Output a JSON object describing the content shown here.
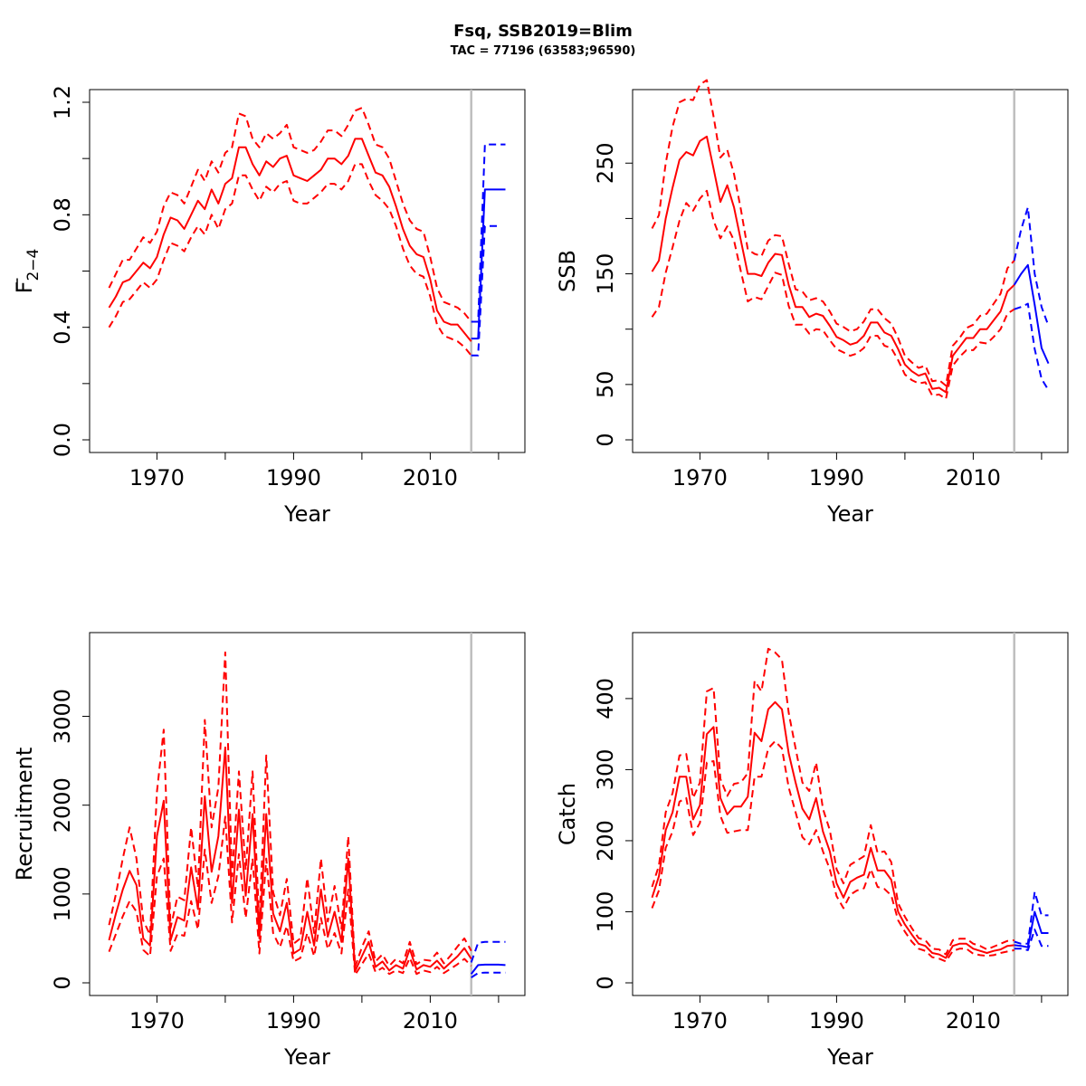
{
  "figure": {
    "title": "Fsq, SSB2019=Blim",
    "subtitle": "TAC = 77196 (63583;96590)"
  },
  "colors": {
    "historic": "#ff0000",
    "forecast": "#0000ff",
    "divider": "#bebebe"
  },
  "chart_data": [
    {
      "type": "line",
      "panel": "top-left",
      "xlabel": "Year",
      "ylabel_base": "F",
      "ylabel_sub": "2−4",
      "xlim": [
        1962,
        2022
      ],
      "ylim": [
        0,
        1.2
      ],
      "xticks": [
        1970,
        1980,
        1990,
        2000,
        2010,
        2020
      ],
      "xtick_labels": [
        "1970",
        "",
        "1990",
        "",
        "2010",
        ""
      ],
      "yticks": [
        0,
        0.2,
        0.4,
        0.6,
        0.8,
        1.0,
        1.2
      ],
      "ytick_labels": [
        "0.0",
        "",
        "0.4",
        "",
        "0.8",
        "",
        "1.2"
      ],
      "divider_year": 2016,
      "historic": {
        "x": [
          1963,
          1964,
          1965,
          1966,
          1967,
          1968,
          1969,
          1970,
          1971,
          1972,
          1973,
          1974,
          1975,
          1976,
          1977,
          1978,
          1979,
          1980,
          1981,
          1982,
          1983,
          1984,
          1985,
          1986,
          1987,
          1988,
          1989,
          1990,
          1991,
          1992,
          1993,
          1994,
          1995,
          1996,
          1997,
          1998,
          1999,
          2000,
          2001,
          2002,
          2003,
          2004,
          2005,
          2006,
          2007,
          2008,
          2009,
          2010,
          2011,
          2012,
          2013,
          2014,
          2015,
          2016
        ],
        "mid": [
          0.47,
          0.51,
          0.56,
          0.57,
          0.6,
          0.63,
          0.61,
          0.65,
          0.73,
          0.79,
          0.78,
          0.75,
          0.8,
          0.85,
          0.82,
          0.89,
          0.84,
          0.91,
          0.93,
          1.04,
          1.04,
          0.98,
          0.94,
          0.99,
          0.97,
          1.0,
          1.01,
          0.94,
          0.93,
          0.92,
          0.94,
          0.96,
          1.0,
          1.0,
          0.98,
          1.01,
          1.07,
          1.07,
          1.01,
          0.95,
          0.94,
          0.9,
          0.83,
          0.75,
          0.69,
          0.66,
          0.65,
          0.57,
          0.46,
          0.42,
          0.41,
          0.41,
          0.38,
          0.35
        ],
        "upper": [
          0.54,
          0.59,
          0.64,
          0.64,
          0.68,
          0.72,
          0.7,
          0.74,
          0.83,
          0.88,
          0.87,
          0.84,
          0.9,
          0.96,
          0.92,
          0.99,
          0.95,
          1.02,
          1.04,
          1.16,
          1.15,
          1.07,
          1.04,
          1.09,
          1.07,
          1.09,
          1.12,
          1.04,
          1.03,
          1.02,
          1.03,
          1.06,
          1.1,
          1.1,
          1.08,
          1.12,
          1.17,
          1.18,
          1.12,
          1.05,
          1.04,
          1.0,
          0.92,
          0.84,
          0.78,
          0.75,
          0.74,
          0.65,
          0.54,
          0.49,
          0.48,
          0.47,
          0.45,
          0.42
        ],
        "lower": [
          0.4,
          0.44,
          0.49,
          0.5,
          0.53,
          0.56,
          0.54,
          0.57,
          0.64,
          0.7,
          0.69,
          0.67,
          0.72,
          0.76,
          0.73,
          0.8,
          0.75,
          0.82,
          0.84,
          0.94,
          0.94,
          0.89,
          0.85,
          0.9,
          0.88,
          0.91,
          0.92,
          0.85,
          0.84,
          0.84,
          0.86,
          0.88,
          0.91,
          0.91,
          0.89,
          0.92,
          0.98,
          0.98,
          0.92,
          0.87,
          0.85,
          0.82,
          0.76,
          0.68,
          0.62,
          0.59,
          0.58,
          0.51,
          0.41,
          0.37,
          0.36,
          0.35,
          0.33,
          0.3
        ]
      },
      "forecast": {
        "x": [
          2016,
          2017,
          2018,
          2019,
          2020,
          2021
        ],
        "mid": [
          0.36,
          0.36,
          0.89,
          0.89,
          0.89,
          0.89
        ],
        "upper": [
          0.42,
          0.42,
          1.05,
          1.05,
          1.05,
          1.05
        ],
        "lower": [
          0.3,
          0.3,
          0.76,
          0.76,
          0.76,
          null
        ]
      }
    },
    {
      "type": "line",
      "panel": "top-right",
      "xlabel": "Year",
      "ylabel": "SSB",
      "xlim": [
        1962,
        2022
      ],
      "ylim": [
        0,
        305
      ],
      "xticks": [
        1970,
        1980,
        1990,
        2000,
        2010,
        2020
      ],
      "xtick_labels": [
        "1970",
        "",
        "1990",
        "",
        "2010",
        ""
      ],
      "yticks": [
        0,
        50,
        100,
        150,
        200,
        250
      ],
      "ytick_labels": [
        "0",
        "50",
        "",
        "150",
        "",
        "250"
      ],
      "divider_year": 2016,
      "historic": {
        "x": [
          1963,
          1964,
          1965,
          1966,
          1967,
          1968,
          1969,
          1970,
          1971,
          1972,
          1973,
          1974,
          1975,
          1976,
          1977,
          1978,
          1979,
          1980,
          1981,
          1982,
          1983,
          1984,
          1985,
          1986,
          1987,
          1988,
          1989,
          1990,
          1991,
          1992,
          1993,
          1994,
          1995,
          1996,
          1997,
          1998,
          1999,
          2000,
          2001,
          2002,
          2003,
          2004,
          2005,
          2006,
          2007,
          2008,
          2009,
          2010,
          2011,
          2012,
          2013,
          2014,
          2015,
          2016
        ],
        "mid": [
          152,
          162,
          200,
          228,
          253,
          260,
          257,
          270,
          274,
          245,
          215,
          230,
          210,
          180,
          150,
          150,
          148,
          160,
          168,
          167,
          140,
          120,
          120,
          111,
          114,
          112,
          103,
          93,
          90,
          86,
          88,
          94,
          106,
          106,
          97,
          94,
          82,
          68,
          62,
          58,
          60,
          46,
          47,
          43,
          76,
          84,
          92,
          92,
          100,
          100,
          108,
          116,
          134,
          140
        ],
        "upper": [
          191,
          203,
          250,
          283,
          305,
          308,
          307,
          321,
          325,
          292,
          255,
          262,
          240,
          208,
          172,
          168,
          166,
          180,
          185,
          184,
          159,
          136,
          134,
          126,
          128,
          125,
          116,
          105,
          102,
          98,
          100,
          107,
          118,
          118,
          110,
          105,
          92,
          76,
          70,
          65,
          67,
          53,
          54,
          49,
          85,
          92,
          101,
          104,
          112,
          114,
          123,
          132,
          155,
          162
        ],
        "lower": [
          111,
          120,
          151,
          174,
          198,
          214,
          207,
          218,
          225,
          198,
          182,
          193,
          180,
          152,
          125,
          129,
          127,
          139,
          151,
          149,
          121,
          104,
          104,
          96,
          100,
          99,
          90,
          82,
          79,
          76,
          78,
          83,
          94,
          94,
          85,
          83,
          72,
          59,
          54,
          51,
          52,
          40,
          41,
          37,
          67,
          75,
          81,
          81,
          88,
          87,
          93,
          100,
          114,
          118
        ]
      },
      "forecast": {
        "x": [
          2016,
          2017,
          2018,
          2019,
          2020,
          2021
        ],
        "mid": [
          140,
          150,
          158,
          122,
          83,
          69
        ],
        "upper": [
          162,
          190,
          210,
          150,
          120,
          103
        ],
        "lower": [
          118,
          120,
          123,
          82,
          55,
          45
        ]
      }
    },
    {
      "type": "line",
      "panel": "bottom-left",
      "xlabel": "Year",
      "ylabel": "Recruitment",
      "xlim": [
        1962,
        2022
      ],
      "ylim": [
        0,
        3800
      ],
      "xticks": [
        1970,
        1980,
        1990,
        2000,
        2010,
        2020
      ],
      "xtick_labels": [
        "1970",
        "",
        "1990",
        "",
        "2010",
        ""
      ],
      "yticks": [
        0,
        1000,
        2000,
        3000
      ],
      "ytick_labels": [
        "0",
        "1000",
        "2000",
        "3000"
      ],
      "divider_year": 2016,
      "historic": {
        "x": [
          1963,
          1964,
          1965,
          1966,
          1967,
          1968,
          1969,
          1970,
          1971,
          1972,
          1973,
          1974,
          1975,
          1976,
          1977,
          1978,
          1979,
          1980,
          1981,
          1982,
          1983,
          1984,
          1985,
          1986,
          1987,
          1988,
          1989,
          1990,
          1991,
          1992,
          1993,
          1994,
          1995,
          1996,
          1997,
          1998,
          1999,
          2000,
          2001,
          2002,
          2003,
          2004,
          2005,
          2006,
          2007,
          2008,
          2009,
          2010,
          2011,
          2012,
          2013,
          2014,
          2015,
          2016
        ],
        "mid": [
          480,
          780,
          1050,
          1260,
          1100,
          500,
          420,
          1650,
          2050,
          480,
          740,
          700,
          1300,
          830,
          2100,
          1250,
          1650,
          2650,
          900,
          1950,
          980,
          1900,
          500,
          1900,
          780,
          580,
          900,
          330,
          380,
          800,
          420,
          1050,
          520,
          800,
          460,
          1400,
          130,
          300,
          460,
          180,
          240,
          140,
          200,
          160,
          380,
          150,
          200,
          180,
          250,
          160,
          230,
          300,
          390,
          270
        ],
        "upper": [
          650,
          1000,
          1400,
          1750,
          1400,
          700,
          540,
          2150,
          2850,
          620,
          970,
          930,
          1750,
          1070,
          2960,
          1750,
          2200,
          3720,
          1200,
          2380,
          1270,
          2380,
          650,
          2560,
          1020,
          760,
          1170,
          440,
          500,
          1180,
          560,
          1400,
          690,
          1090,
          610,
          1650,
          180,
          400,
          580,
          240,
          320,
          190,
          270,
          220,
          460,
          210,
          260,
          250,
          340,
          220,
          310,
          410,
          500,
          360
        ],
        "lower": [
          350,
          550,
          750,
          920,
          800,
          370,
          300,
          1200,
          1400,
          360,
          550,
          530,
          920,
          600,
          1500,
          900,
          1200,
          1870,
          680,
          1450,
          730,
          1400,
          330,
          1400,
          560,
          400,
          640,
          240,
          280,
          560,
          300,
          730,
          380,
          560,
          330,
          1050,
          90,
          210,
          330,
          120,
          170,
          100,
          140,
          110,
          280,
          100,
          140,
          120,
          180,
          110,
          160,
          210,
          270,
          190
        ]
      },
      "forecast": {
        "x": [
          2016,
          2017,
          2018,
          2019,
          2020,
          2021
        ],
        "mid": [
          100,
          200,
          205,
          205,
          205,
          200
        ],
        "upper": [
          230,
          450,
          460,
          460,
          460,
          460
        ],
        "lower": [
          60,
          110,
          115,
          115,
          115,
          115
        ]
      }
    },
    {
      "type": "line",
      "panel": "bottom-right",
      "xlabel": "Year",
      "ylabel": "Catch",
      "xlim": [
        1962,
        2022
      ],
      "ylim": [
        0,
        475
      ],
      "xticks": [
        1970,
        1980,
        1990,
        2000,
        2010,
        2020
      ],
      "xtick_labels": [
        "1970",
        "",
        "1990",
        "",
        "2010",
        ""
      ],
      "yticks": [
        0,
        100,
        200,
        300,
        400
      ],
      "ytick_labels": [
        "0",
        "100",
        "200",
        "300",
        "400"
      ],
      "divider_year": 2016,
      "historic": {
        "x": [
          1963,
          1964,
          1965,
          1966,
          1967,
          1968,
          1969,
          1970,
          1971,
          1972,
          1973,
          1974,
          1975,
          1976,
          1977,
          1978,
          1979,
          1980,
          1981,
          1982,
          1983,
          1984,
          1985,
          1986,
          1987,
          1988,
          1989,
          1990,
          1991,
          1992,
          1993,
          1994,
          1995,
          1996,
          1997,
          1998,
          1999,
          2000,
          2001,
          2002,
          2003,
          2004,
          2005,
          2006,
          2007,
          2008,
          2009,
          2010,
          2011,
          2012,
          2013,
          2014,
          2015,
          2016
        ],
        "mid": [
          120,
          150,
          215,
          240,
          290,
          290,
          230,
          250,
          350,
          360,
          260,
          237,
          248,
          248,
          262,
          352,
          340,
          385,
          395,
          385,
          323,
          282,
          245,
          230,
          260,
          213,
          185,
          140,
          120,
          142,
          148,
          152,
          190,
          158,
          158,
          145,
          100,
          82,
          68,
          55,
          52,
          42,
          40,
          35,
          52,
          55,
          55,
          48,
          45,
          42,
          45,
          47,
          52,
          53
        ],
        "upper": [
          135,
          165,
          240,
          267,
          320,
          322,
          260,
          282,
          410,
          415,
          287,
          263,
          280,
          282,
          295,
          425,
          410,
          470,
          465,
          455,
          380,
          330,
          282,
          270,
          310,
          245,
          215,
          160,
          140,
          166,
          172,
          178,
          222,
          183,
          185,
          170,
          112,
          93,
          77,
          63,
          60,
          48,
          47,
          40,
          60,
          62,
          62,
          55,
          52,
          47,
          51,
          55,
          59,
          60
        ],
        "lower": [
          105,
          130,
          190,
          213,
          255,
          260,
          208,
          225,
          310,
          312,
          235,
          211,
          213,
          215,
          215,
          290,
          290,
          330,
          340,
          330,
          275,
          240,
          205,
          195,
          215,
          185,
          160,
          122,
          105,
          124,
          130,
          133,
          160,
          135,
          132,
          123,
          88,
          72,
          58,
          48,
          45,
          36,
          34,
          30,
          45,
          48,
          48,
          41,
          39,
          38,
          39,
          42,
          44,
          46
        ]
      },
      "forecast": {
        "x": [
          2016,
          2017,
          2018,
          2019,
          2020,
          2021
        ],
        "mid": [
          53,
          52,
          50,
          100,
          70,
          70
        ],
        "upper": [
          58,
          55,
          55,
          128,
          95,
          95
        ],
        "lower": [
          48,
          48,
          46,
          75,
          52,
          52
        ]
      }
    }
  ]
}
